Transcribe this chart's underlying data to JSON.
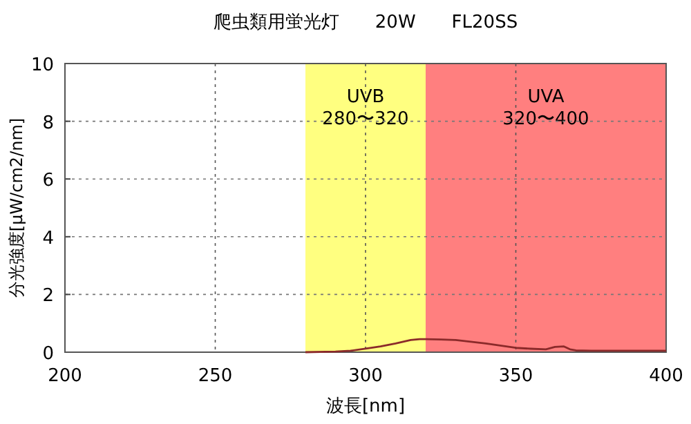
{
  "chart_data": {
    "type": "line",
    "title": "爬虫類用蛍光灯　　20W　　FL20SS",
    "xlabel": "波長[nm]",
    "ylabel": "分光強度[μW/cm2/nm]",
    "xlim": [
      200,
      400
    ],
    "xticks": [
      200,
      250,
      300,
      350,
      400
    ],
    "ylim": [
      0,
      10
    ],
    "yticks": [
      0,
      2,
      4,
      6,
      8,
      10
    ],
    "grid": true,
    "bands": [
      {
        "axis": "x",
        "from": 280,
        "to": 320,
        "label": "UVB 280〜320",
        "color": "#ffff80"
      },
      {
        "axis": "x",
        "from": 320,
        "to": 400,
        "label": "UVA 320〜400",
        "color": "#ff7f7f"
      }
    ],
    "series": [
      {
        "color": "#8b2a2a",
        "x": [
          280,
          290,
          295,
          300,
          305,
          310,
          315,
          318,
          320,
          325,
          330,
          340,
          350,
          355,
          360,
          363,
          366,
          368,
          370,
          375,
          380,
          390,
          400
        ],
        "values": [
          0,
          0.02,
          0.05,
          0.12,
          0.2,
          0.3,
          0.42,
          0.45,
          0.45,
          0.44,
          0.42,
          0.3,
          0.15,
          0.12,
          0.1,
          0.18,
          0.2,
          0.1,
          0.06,
          0.05,
          0.05,
          0.05,
          0.05
        ]
      }
    ]
  }
}
